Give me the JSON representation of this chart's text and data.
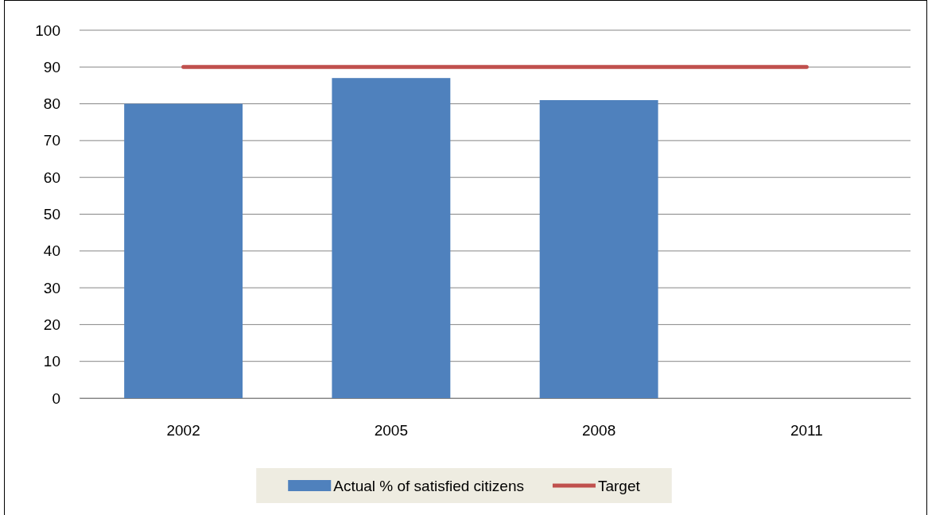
{
  "chart_data": {
    "type": "bar",
    "categories": [
      "2002",
      "2005",
      "2008",
      "2011"
    ],
    "series": [
      {
        "name": "Actual % of satisfied citizens",
        "color": "#4f81bd",
        "values": [
          80,
          87,
          81,
          null
        ]
      },
      {
        "name": "Target",
        "type": "line",
        "color": "#c0504d",
        "values": [
          90,
          90,
          90,
          90
        ]
      }
    ],
    "ylim": [
      0,
      100
    ],
    "yticks": [
      0,
      10,
      20,
      30,
      40,
      50,
      60,
      70,
      80,
      90,
      100
    ],
    "grid": "y",
    "legend": "bottom"
  }
}
